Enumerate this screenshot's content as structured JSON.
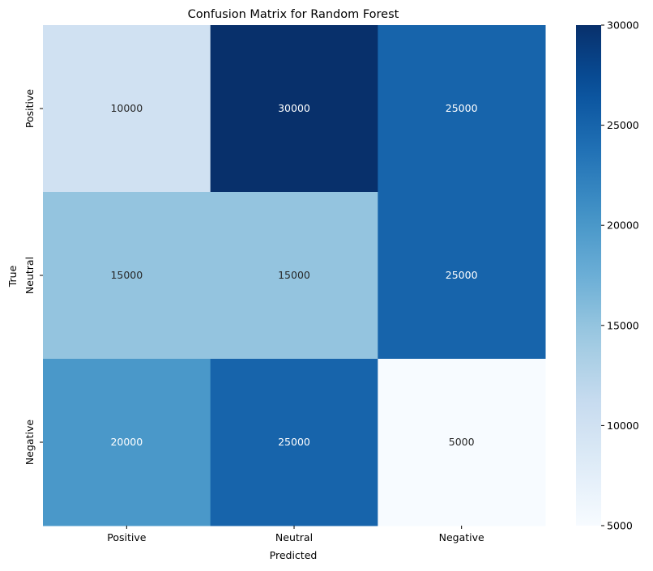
{
  "chart_data": {
    "type": "heatmap",
    "title": "Confusion Matrix for Random Forest",
    "xlabel": "Predicted",
    "ylabel": "True",
    "x_categories": [
      "Positive",
      "Neutral",
      "Negative"
    ],
    "y_categories": [
      "Positive",
      "Neutral",
      "Negative"
    ],
    "values": [
      [
        10000,
        30000,
        25000
      ],
      [
        15000,
        15000,
        25000
      ],
      [
        20000,
        25000,
        5000
      ]
    ],
    "colormap": "Blues",
    "colorbar": {
      "range": [
        5000,
        30000
      ],
      "ticks": [
        "5000",
        "10000",
        "15000",
        "20000",
        "25000",
        "30000"
      ],
      "tick_values": [
        5000,
        10000,
        15000,
        20000,
        25000,
        30000
      ]
    }
  }
}
